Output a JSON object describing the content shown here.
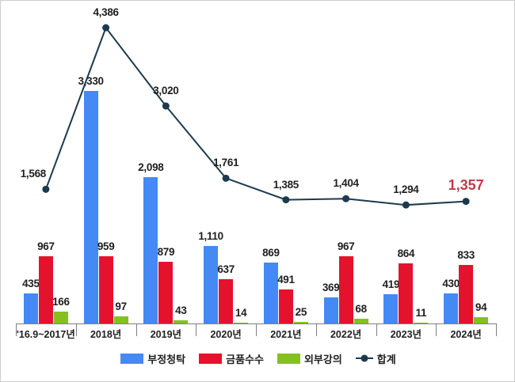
{
  "chart_data": {
    "type": "bar",
    "subtype": "grouped-bars-with-line-overlay",
    "title": "",
    "xlabel": "",
    "ylabel": "",
    "grid": false,
    "legend_position": "bottom",
    "ylim_bars": [
      0,
      3500
    ],
    "ylim_line": [
      0,
      4850
    ],
    "categories": [
      "'16.9~2017년",
      "2018년",
      "2019년",
      "2020년",
      "2021년",
      "2022년",
      "2023년",
      "2024년"
    ],
    "series": [
      {
        "name": "부정청탁",
        "type": "bar",
        "color": "#4489f4",
        "values": [
          435,
          3330,
          2098,
          1110,
          869,
          369,
          419,
          430
        ]
      },
      {
        "name": "금품수수",
        "type": "bar",
        "color": "#e5122d",
        "values": [
          967,
          959,
          879,
          637,
          491,
          967,
          864,
          833
        ]
      },
      {
        "name": "외부강의",
        "type": "bar",
        "color": "#84c120",
        "values": [
          166,
          97,
          43,
          14,
          25,
          68,
          11,
          94
        ]
      },
      {
        "name": "합계",
        "type": "line",
        "color": "#1c3a4e",
        "values": [
          1568,
          4386,
          3020,
          1761,
          1385,
          1404,
          1294,
          1357
        ],
        "highlight_last_value": true,
        "highlight_color": "#c23b4c"
      }
    ]
  },
  "axis": {
    "line_color": "#7f7f7f"
  },
  "frame": {
    "border_color": "#cdcdcd"
  }
}
